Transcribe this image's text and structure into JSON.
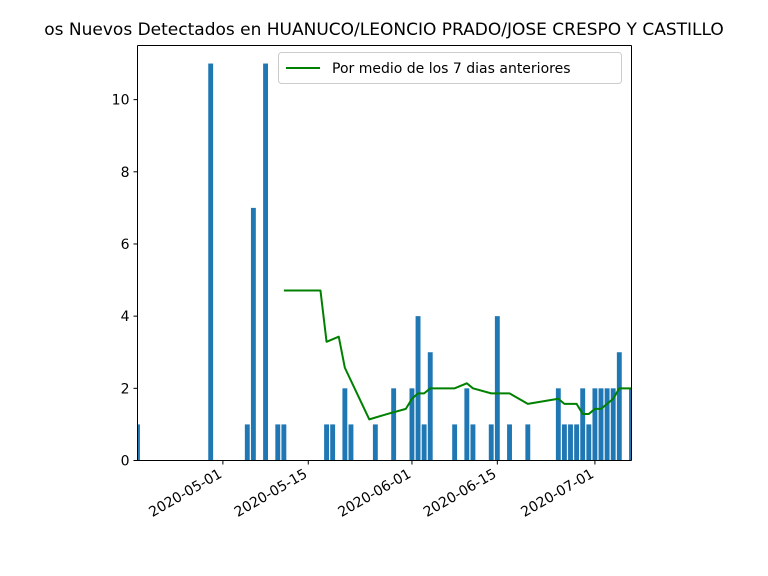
{
  "chart_data": {
    "type": "bar",
    "title": "os Nuevos Detectados en HUANUCO/LEONCIO PRADO/JOSE CRESPO Y CASTILLO",
    "xlabel": "",
    "ylabel": "",
    "x_range": [
      "2020-04-17",
      "2020-07-07"
    ],
    "ylim": [
      0,
      11.5
    ],
    "grid": false,
    "legend_position": "top-right",
    "colors": {
      "bars": "#1f77b4",
      "line": "#008000"
    },
    "x_ticks": [
      {
        "date": "2020-05-01",
        "label": "2020-05-01"
      },
      {
        "date": "2020-05-15",
        "label": "2020-05-15"
      },
      {
        "date": "2020-06-01",
        "label": "2020-06-01"
      },
      {
        "date": "2020-06-15",
        "label": "2020-06-15"
      },
      {
        "date": "2020-07-01",
        "label": "2020-07-01"
      }
    ],
    "y_ticks": [
      {
        "value": 0,
        "label": "0"
      },
      {
        "value": 2,
        "label": "2"
      },
      {
        "value": 4,
        "label": "4"
      },
      {
        "value": 6,
        "label": "6"
      },
      {
        "value": 8,
        "label": "8"
      },
      {
        "value": 10,
        "label": "10"
      }
    ],
    "bars": [
      {
        "date": "2020-04-17",
        "value": 1
      },
      {
        "date": "2020-04-29",
        "value": 11
      },
      {
        "date": "2020-05-05",
        "value": 1
      },
      {
        "date": "2020-05-06",
        "value": 7
      },
      {
        "date": "2020-05-08",
        "value": 11
      },
      {
        "date": "2020-05-10",
        "value": 1
      },
      {
        "date": "2020-05-11",
        "value": 1
      },
      {
        "date": "2020-05-18",
        "value": 1
      },
      {
        "date": "2020-05-19",
        "value": 1
      },
      {
        "date": "2020-05-21",
        "value": 2
      },
      {
        "date": "2020-05-22",
        "value": 1
      },
      {
        "date": "2020-05-26",
        "value": 1
      },
      {
        "date": "2020-05-29",
        "value": 2
      },
      {
        "date": "2020-06-01",
        "value": 2
      },
      {
        "date": "2020-06-02",
        "value": 4
      },
      {
        "date": "2020-06-03",
        "value": 1
      },
      {
        "date": "2020-06-04",
        "value": 3
      },
      {
        "date": "2020-06-08",
        "value": 1
      },
      {
        "date": "2020-06-10",
        "value": 2
      },
      {
        "date": "2020-06-11",
        "value": 1
      },
      {
        "date": "2020-06-14",
        "value": 1
      },
      {
        "date": "2020-06-15",
        "value": 4
      },
      {
        "date": "2020-06-17",
        "value": 1
      },
      {
        "date": "2020-06-20",
        "value": 1
      },
      {
        "date": "2020-06-25",
        "value": 2
      },
      {
        "date": "2020-06-26",
        "value": 1
      },
      {
        "date": "2020-06-27",
        "value": 1
      },
      {
        "date": "2020-06-28",
        "value": 1
      },
      {
        "date": "2020-06-29",
        "value": 2
      },
      {
        "date": "2020-06-30",
        "value": 1
      },
      {
        "date": "2020-07-01",
        "value": 2
      },
      {
        "date": "2020-07-02",
        "value": 2
      },
      {
        "date": "2020-07-03",
        "value": 2
      },
      {
        "date": "2020-07-04",
        "value": 2
      },
      {
        "date": "2020-07-05",
        "value": 3
      },
      {
        "date": "2020-07-07",
        "value": 2
      }
    ],
    "series": [
      {
        "name": "Por medio de los 7 dias anteriores",
        "points": [
          {
            "date": "2020-05-11",
            "value": 4.71
          },
          {
            "date": "2020-05-17",
            "value": 4.71
          },
          {
            "date": "2020-05-18",
            "value": 3.29
          },
          {
            "date": "2020-05-20",
            "value": 3.43
          },
          {
            "date": "2020-05-21",
            "value": 2.57
          },
          {
            "date": "2020-05-25",
            "value": 1.14
          },
          {
            "date": "2020-05-28",
            "value": 1.29
          },
          {
            "date": "2020-05-31",
            "value": 1.43
          },
          {
            "date": "2020-06-01",
            "value": 1.71
          },
          {
            "date": "2020-06-02",
            "value": 1.86
          },
          {
            "date": "2020-06-03",
            "value": 1.86
          },
          {
            "date": "2020-06-04",
            "value": 2.0
          },
          {
            "date": "2020-06-08",
            "value": 2.0
          },
          {
            "date": "2020-06-10",
            "value": 2.14
          },
          {
            "date": "2020-06-11",
            "value": 2.0
          },
          {
            "date": "2020-06-14",
            "value": 1.86
          },
          {
            "date": "2020-06-17",
            "value": 1.86
          },
          {
            "date": "2020-06-20",
            "value": 1.57
          },
          {
            "date": "2020-06-25",
            "value": 1.71
          },
          {
            "date": "2020-06-26",
            "value": 1.57
          },
          {
            "date": "2020-06-28",
            "value": 1.57
          },
          {
            "date": "2020-06-29",
            "value": 1.29
          },
          {
            "date": "2020-06-30",
            "value": 1.29
          },
          {
            "date": "2020-07-01",
            "value": 1.43
          },
          {
            "date": "2020-07-02",
            "value": 1.43
          },
          {
            "date": "2020-07-03",
            "value": 1.57
          },
          {
            "date": "2020-07-04",
            "value": 1.71
          },
          {
            "date": "2020-07-05",
            "value": 2.0
          },
          {
            "date": "2020-07-07",
            "value": 2.0
          }
        ]
      }
    ]
  }
}
